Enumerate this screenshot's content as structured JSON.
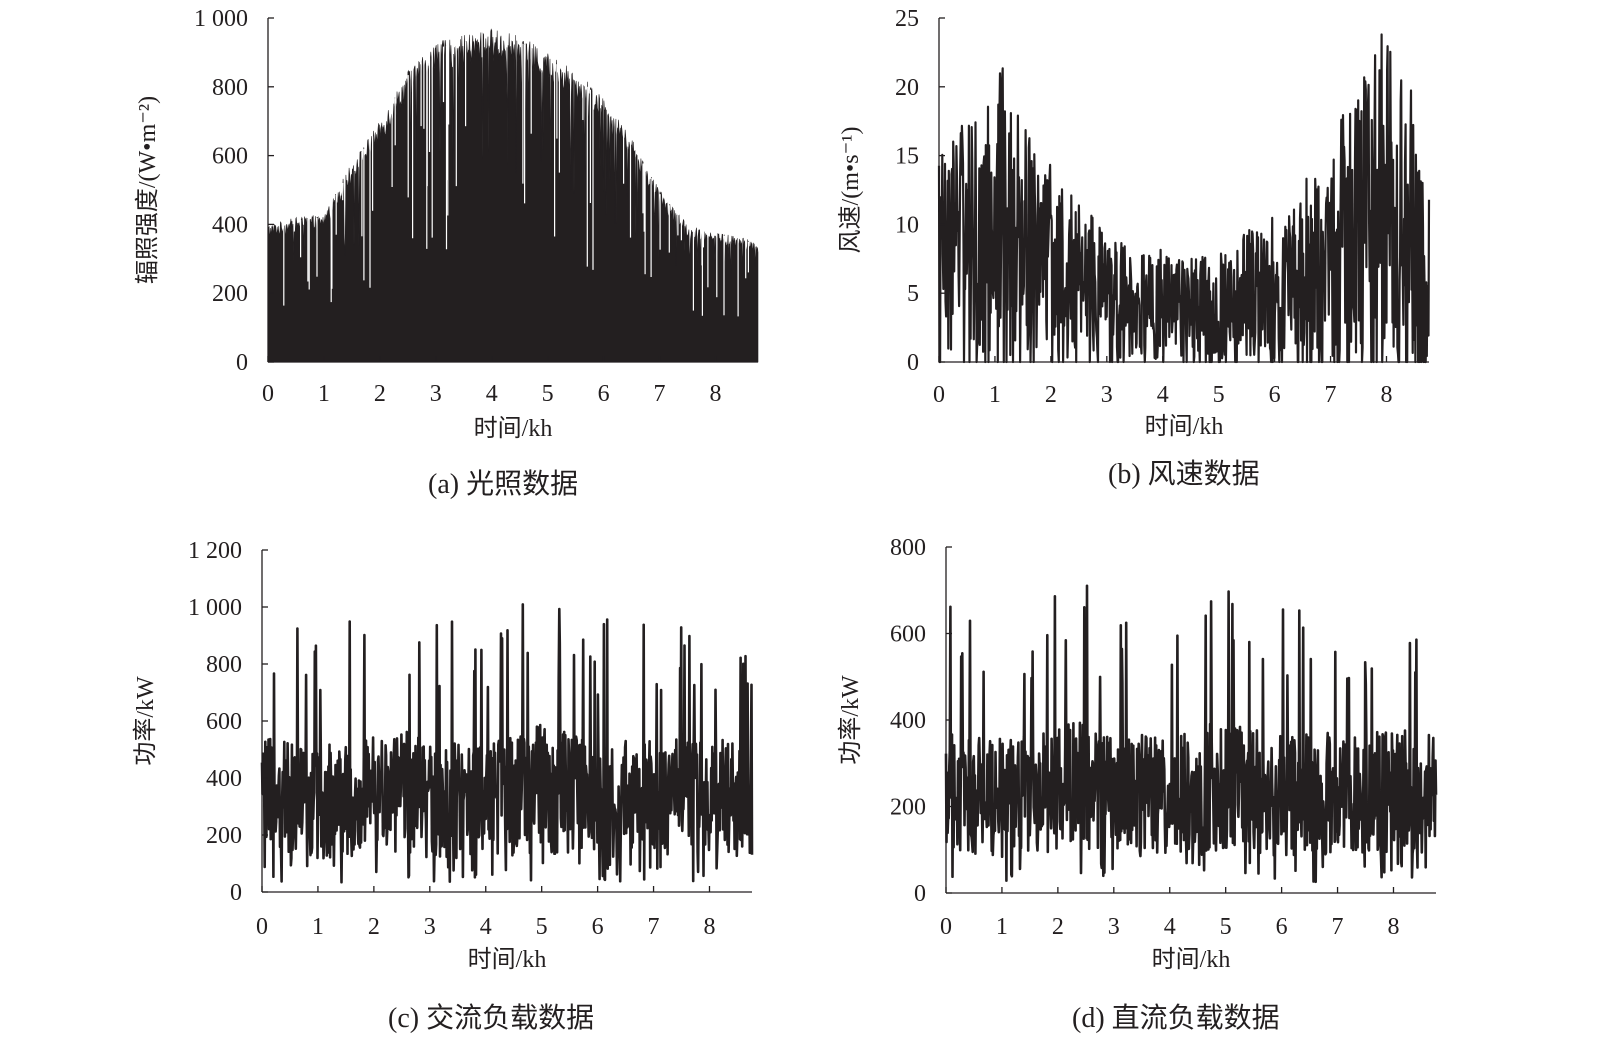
{
  "chart_data": [
    {
      "type": "area",
      "caption": "(a) 光照数据",
      "xlabel": "时间/kh",
      "ylabel": "辐照强度/(W•m⁻²)",
      "xlim": [
        0,
        8.76
      ],
      "ylim": [
        0,
        1000
      ],
      "xticks": [
        "0",
        "1",
        "2",
        "3",
        "4",
        "5",
        "6",
        "7",
        "8"
      ],
      "yticks": [
        "0",
        "200",
        "400",
        "600",
        "800",
        "1 000"
      ],
      "series": [
        {
          "x": [
            0,
            0.5,
            1,
            1.5,
            2,
            2.5,
            3,
            3.5,
            4,
            4.5,
            5,
            5.5,
            6,
            6.5,
            7,
            7.5,
            8,
            8.76
          ],
          "y": [
            400,
            420,
            430,
            580,
            700,
            850,
            930,
            950,
            970,
            950,
            900,
            850,
            770,
            650,
            500,
            400,
            380,
            350
          ]
        }
      ],
      "color": "#231f20",
      "grid": false
    },
    {
      "type": "line",
      "caption": "(b) 风速数据",
      "xlabel": "时间/kh",
      "ylabel": "风速/(m•s⁻¹)",
      "xlim": [
        0,
        8.76
      ],
      "ylim": [
        0,
        25
      ],
      "xticks": [
        "0",
        "1",
        "2",
        "3",
        "4",
        "5",
        "6",
        "7",
        "8"
      ],
      "yticks": [
        "0",
        "5",
        "10",
        "15",
        "20",
        "25"
      ],
      "series": [
        {
          "x": [
            0,
            0.5,
            1,
            1.5,
            2,
            2.5,
            3,
            3.5,
            4,
            4.5,
            5,
            5.5,
            6,
            6.5,
            7,
            7.5,
            8,
            8.76
          ],
          "y": [
            8,
            9,
            10,
            9,
            7,
            6,
            5,
            4,
            4,
            4,
            4,
            5,
            5,
            6,
            8,
            11,
            12,
            8
          ]
        }
      ],
      "color": "#231f20",
      "grid": false
    },
    {
      "type": "line",
      "caption": "(c) 交流负载数据",
      "xlabel": "时间/kh",
      "ylabel": "功率/kW",
      "xlim": [
        0,
        8.76
      ],
      "ylim": [
        0,
        1200
      ],
      "xticks": [
        "0",
        "1",
        "2",
        "3",
        "4",
        "5",
        "6",
        "7",
        "8"
      ],
      "yticks": [
        "0",
        "200",
        "400",
        "600",
        "800",
        "1 000",
        "1 200"
      ],
      "series": [
        {
          "x": [
            0,
            1,
            2,
            2.4,
            3,
            4,
            5,
            6,
            7,
            8,
            8.76
          ],
          "y": [
            350,
            330,
            360,
            380,
            340,
            340,
            380,
            340,
            350,
            340,
            360
          ]
        }
      ],
      "color": "#231f20",
      "grid": false
    },
    {
      "type": "line",
      "caption": "(d) 直流负载数据",
      "xlabel": "时间/kh",
      "ylabel": "功率/kW",
      "xlim": [
        0,
        8.76
      ],
      "ylim": [
        0,
        800
      ],
      "xticks": [
        "0",
        "1",
        "2",
        "3",
        "4",
        "5",
        "6",
        "7",
        "8"
      ],
      "yticks": [
        "0",
        "200",
        "400",
        "600",
        "800"
      ],
      "series": [
        {
          "x": [
            0,
            1,
            2,
            2.4,
            3,
            4,
            5,
            6,
            7,
            8,
            8.76
          ],
          "y": [
            240,
            230,
            250,
            260,
            240,
            240,
            260,
            240,
            240,
            240,
            250
          ]
        }
      ],
      "color": "#231f20",
      "grid": false
    }
  ]
}
